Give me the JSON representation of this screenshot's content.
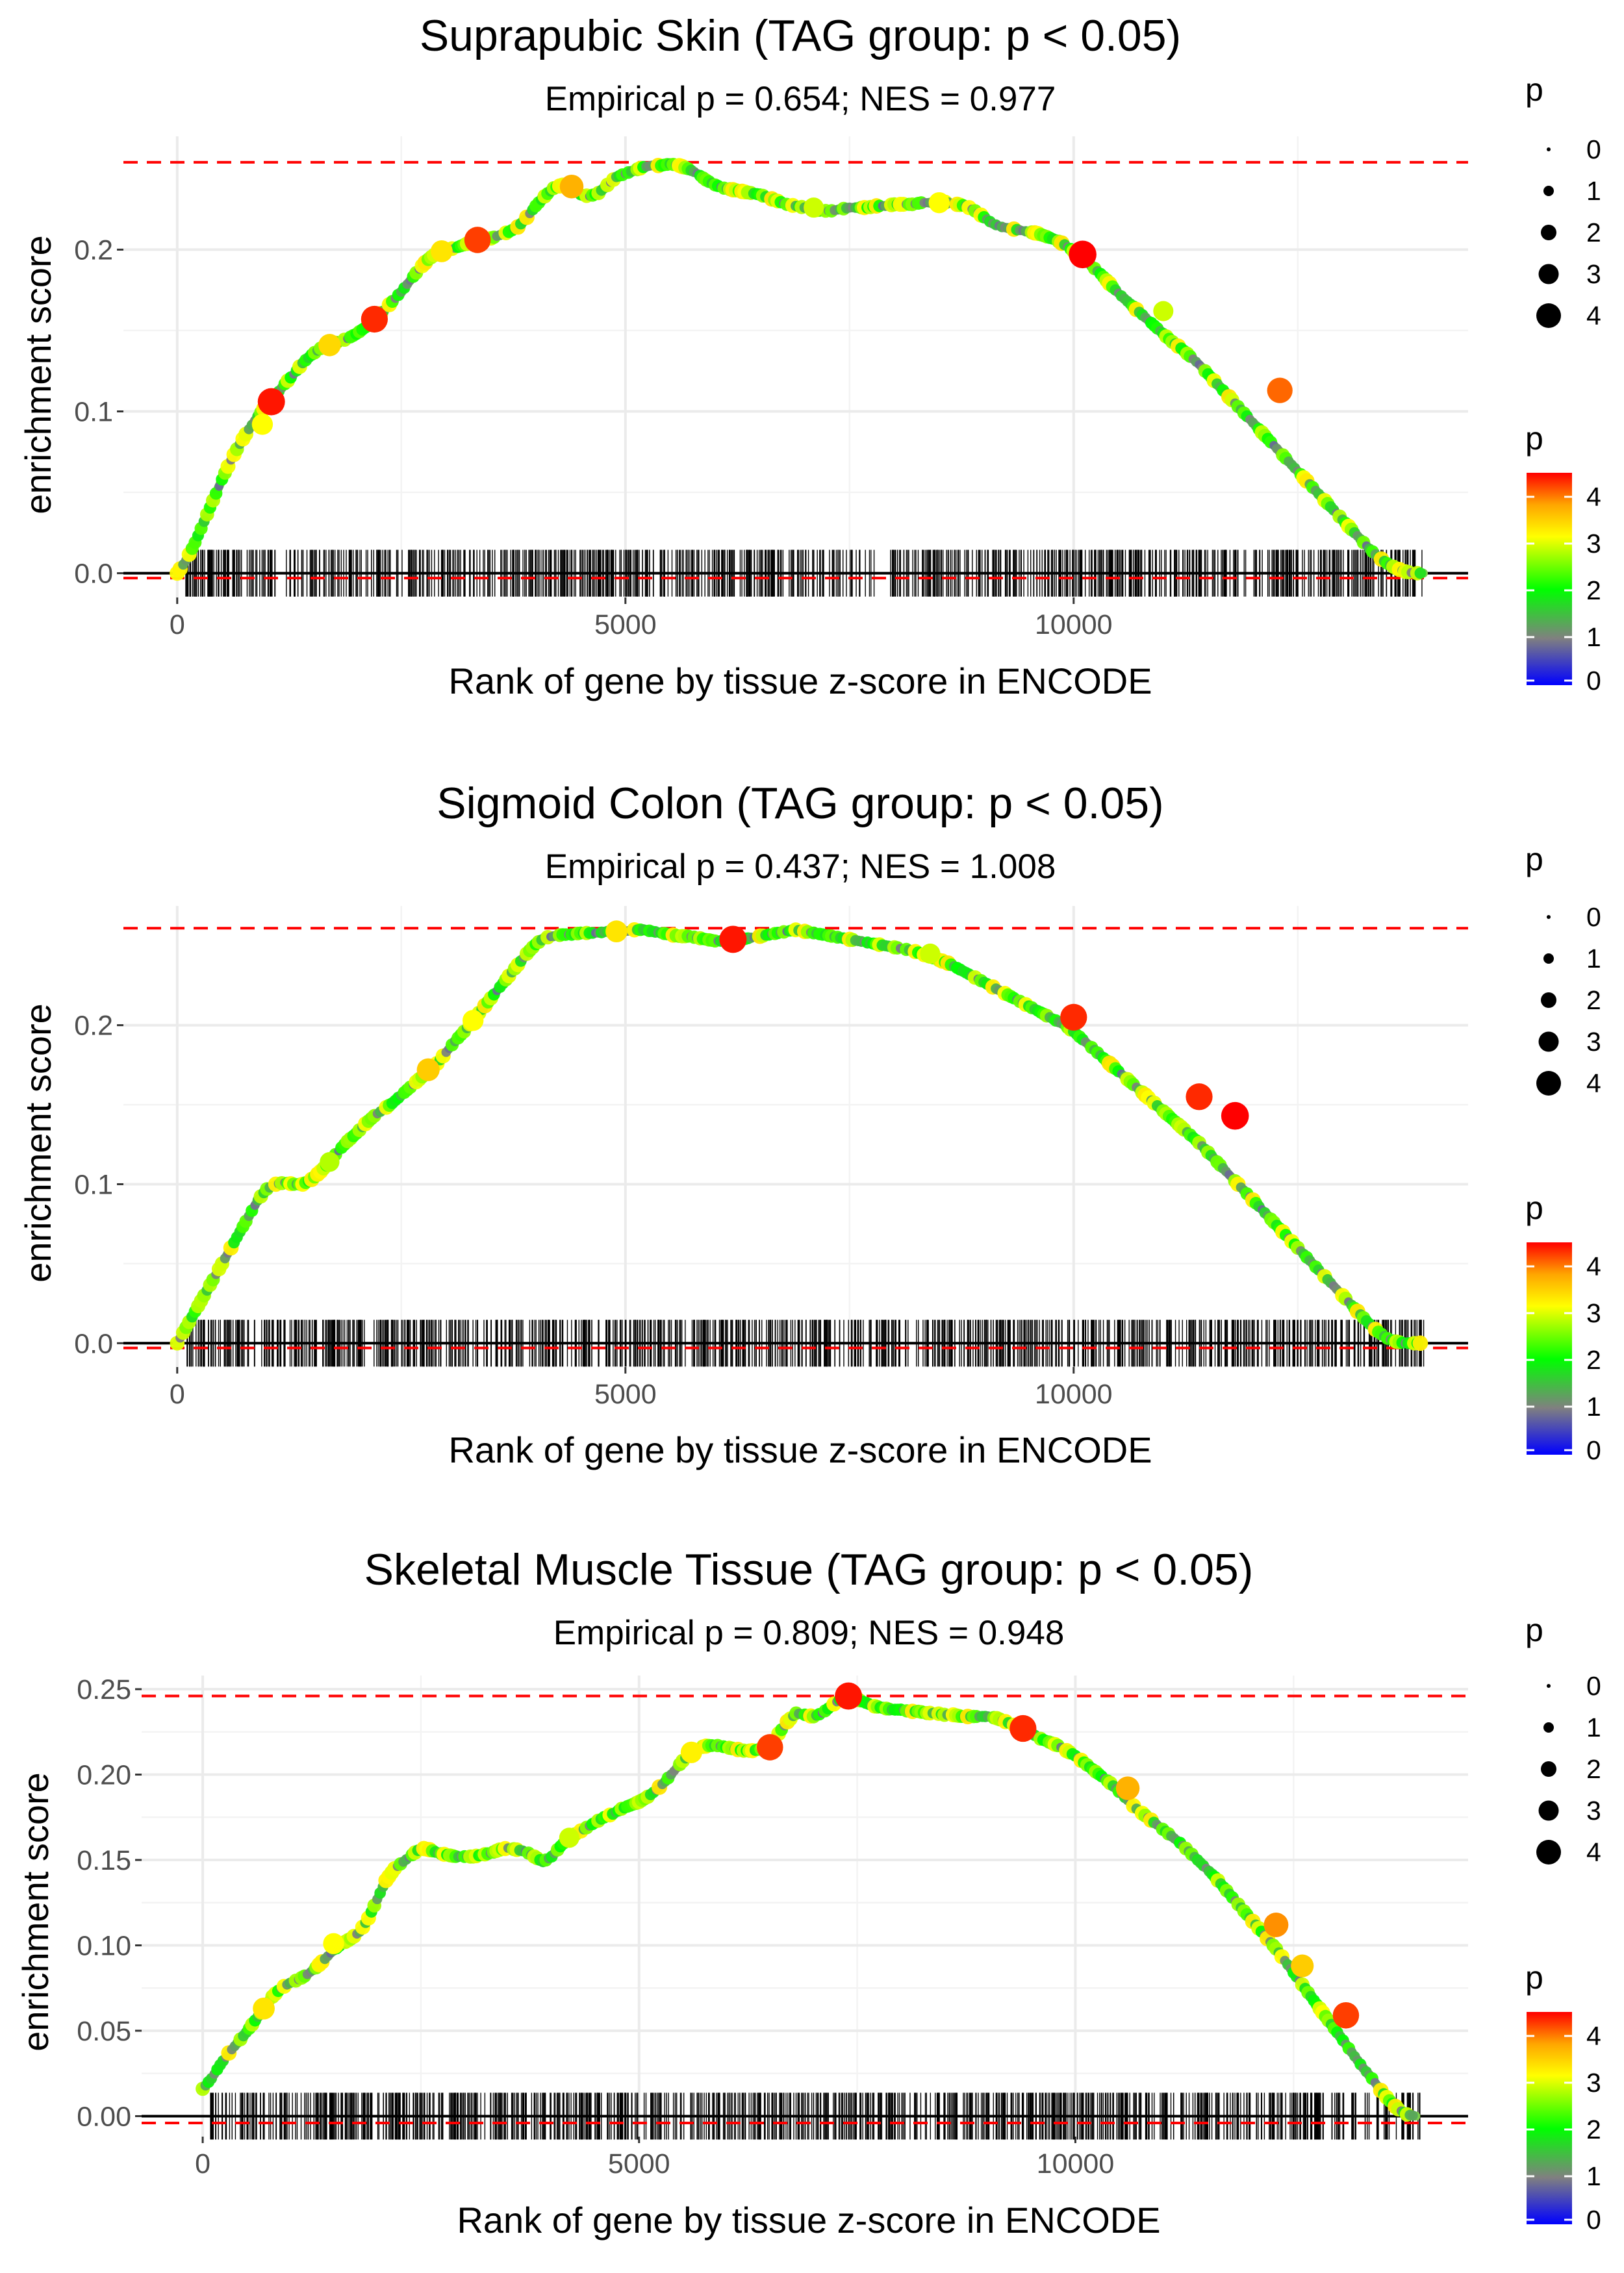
{
  "legend": {
    "size_title": "p",
    "size_items": [
      "0",
      "1",
      "2",
      "3",
      "4"
    ],
    "color_title": "p",
    "color_ticks": [
      "0",
      "1",
      "2",
      "3",
      "4"
    ],
    "colors": {
      "low": "#0000ff",
      "mid_low": "#808080",
      "mid": "#00ff00",
      "mid_high": "#ffff00",
      "high": "#ff0000"
    }
  },
  "chart_data": [
    {
      "type": "line",
      "title": "Suprapubic Skin (TAG group: p < 0.05)",
      "subtitle": "Empirical p = 0.654; NES = 0.977",
      "xlabel": "Rank of gene by tissue z-score in ENCODE",
      "ylabel": "enrichment score",
      "xlim": [
        -600,
        14400
      ],
      "ylim": [
        -0.015,
        0.27
      ],
      "x_ticks": [
        0,
        5000,
        10000
      ],
      "x_tick_labels": [
        "0",
        "5000",
        "10000"
      ],
      "y_ticks": [
        0.0,
        0.1,
        0.2
      ],
      "y_tick_labels": [
        "0.0",
        "0.1",
        "0.2"
      ],
      "max_es": 0.254,
      "min_es": -0.003,
      "x": [
        0,
        100,
        200,
        300,
        400,
        500,
        600,
        700,
        800,
        900,
        1000,
        1100,
        1200,
        1300,
        1400,
        1500,
        1600,
        1700,
        1800,
        1900,
        2000,
        2100,
        2200,
        2300,
        2400,
        2500,
        2600,
        2700,
        2800,
        2900,
        3000,
        3100,
        3200,
        3300,
        3400,
        3500,
        3600,
        3700,
        3800,
        3900,
        4000,
        4100,
        4200,
        4300,
        4400,
        4500,
        4600,
        4700,
        4800,
        4900,
        5000,
        5100,
        5200,
        5300,
        5400,
        5500,
        5600,
        5700,
        5800,
        5900,
        6000,
        6100,
        6200,
        6300,
        6400,
        6500,
        6600,
        6700,
        6800,
        6900,
        7000,
        7100,
        7200,
        7300,
        7400,
        7500,
        7600,
        7700,
        7800,
        7900,
        8000,
        8100,
        8200,
        8300,
        8400,
        8500,
        8600,
        8700,
        8800,
        8900,
        9000,
        9100,
        9200,
        9300,
        9400,
        9500,
        9600,
        9700,
        9800,
        9900,
        10000,
        10100,
        10200,
        10300,
        10400,
        10500,
        10600,
        10700,
        10800,
        10900,
        11000,
        11100,
        11200,
        11300,
        11400,
        11500,
        11600,
        11700,
        11800,
        11900,
        12000,
        12100,
        12200,
        12300,
        12400,
        12500,
        12600,
        12700,
        12800,
        12900,
        13000,
        13100,
        13200,
        13300,
        13400,
        13500,
        13600,
        13700,
        13800,
        13900
      ],
      "y": [
        0.0,
        0.008,
        0.019,
        0.032,
        0.045,
        0.058,
        0.07,
        0.08,
        0.089,
        0.097,
        0.104,
        0.11,
        0.117,
        0.123,
        0.13,
        0.135,
        0.139,
        0.141,
        0.143,
        0.145,
        0.148,
        0.152,
        0.157,
        0.162,
        0.168,
        0.174,
        0.181,
        0.188,
        0.194,
        0.198,
        0.2,
        0.201,
        0.203,
        0.205,
        0.206,
        0.207,
        0.209,
        0.211,
        0.214,
        0.22,
        0.227,
        0.233,
        0.238,
        0.24,
        0.237,
        0.234,
        0.233,
        0.235,
        0.24,
        0.245,
        0.247,
        0.249,
        0.251,
        0.252,
        0.252,
        0.253,
        0.252,
        0.25,
        0.247,
        0.243,
        0.24,
        0.238,
        0.237,
        0.236,
        0.235,
        0.234,
        0.232,
        0.23,
        0.228,
        0.227,
        0.226,
        0.225,
        0.224,
        0.224,
        0.225,
        0.226,
        0.226,
        0.226,
        0.227,
        0.227,
        0.228,
        0.228,
        0.228,
        0.229,
        0.229,
        0.23,
        0.229,
        0.228,
        0.227,
        0.224,
        0.22,
        0.216,
        0.214,
        0.213,
        0.212,
        0.211,
        0.21,
        0.208,
        0.206,
        0.203,
        0.199,
        0.195,
        0.19,
        0.185,
        0.179,
        0.173,
        0.168,
        0.163,
        0.158,
        0.153,
        0.148,
        0.143,
        0.139,
        0.134,
        0.129,
        0.123,
        0.117,
        0.111,
        0.105,
        0.099,
        0.093,
        0.087,
        0.081,
        0.075,
        0.069,
        0.063,
        0.057,
        0.051,
        0.045,
        0.039,
        0.033,
        0.027,
        0.021,
        0.015,
        0.01,
        0.006,
        0.003,
        0.001,
        0.0,
        0.0
      ],
      "highlight_points": [
        {
          "x": 1050,
          "y": 0.106,
          "p": 4.4
        },
        {
          "x": 950,
          "y": 0.092,
          "p": 3.0
        },
        {
          "x": 2200,
          "y": 0.157,
          "p": 4.3
        },
        {
          "x": 1700,
          "y": 0.141,
          "p": 3.3
        },
        {
          "x": 3350,
          "y": 0.206,
          "p": 4.2
        },
        {
          "x": 2950,
          "y": 0.199,
          "p": 3.2
        },
        {
          "x": 4400,
          "y": 0.239,
          "p": 3.6
        },
        {
          "x": 10100,
          "y": 0.197,
          "p": 4.5
        },
        {
          "x": 12300,
          "y": 0.113,
          "p": 4.0
        },
        {
          "x": 7100,
          "y": 0.226,
          "p": 2.8
        },
        {
          "x": 8500,
          "y": 0.229,
          "p": 3.0
        },
        {
          "x": 11000,
          "y": 0.162,
          "p": 2.8
        }
      ],
      "gene_ranks": {
        "count": 950,
        "min": 80,
        "max": 13900
      }
    },
    {
      "type": "line",
      "title": "Sigmoid Colon (TAG group: p < 0.05)",
      "subtitle": "Empirical p = 0.437; NES = 1.008",
      "xlabel": "Rank of gene by tissue z-score in ENCODE",
      "ylabel": "enrichment score",
      "xlim": [
        -600,
        14400
      ],
      "ylim": [
        -0.015,
        0.275
      ],
      "x_ticks": [
        0,
        5000,
        10000
      ],
      "x_tick_labels": [
        "0",
        "5000",
        "10000"
      ],
      "y_ticks": [
        0.0,
        0.1,
        0.2
      ],
      "y_tick_labels": [
        "0.0",
        "0.1",
        "0.2"
      ],
      "max_es": 0.261,
      "min_es": -0.003,
      "x": [
        0,
        100,
        200,
        300,
        400,
        500,
        600,
        700,
        800,
        900,
        1000,
        1100,
        1200,
        1300,
        1400,
        1500,
        1600,
        1700,
        1800,
        1900,
        2000,
        2100,
        2200,
        2300,
        2400,
        2500,
        2600,
        2700,
        2800,
        2900,
        3000,
        3100,
        3200,
        3300,
        3400,
        3500,
        3600,
        3700,
        3800,
        3900,
        4000,
        4100,
        4200,
        4300,
        4400,
        4500,
        4600,
        4700,
        4800,
        4900,
        5000,
        5100,
        5200,
        5300,
        5400,
        5500,
        5600,
        5700,
        5800,
        5900,
        6000,
        6100,
        6200,
        6300,
        6400,
        6500,
        6600,
        6700,
        6800,
        6900,
        7000,
        7100,
        7200,
        7300,
        7400,
        7500,
        7600,
        7700,
        7800,
        7900,
        8000,
        8100,
        8200,
        8300,
        8400,
        8500,
        8600,
        8700,
        8800,
        8900,
        9000,
        9100,
        9200,
        9300,
        9400,
        9500,
        9600,
        9700,
        9800,
        9900,
        10000,
        10100,
        10200,
        10300,
        10400,
        10500,
        10600,
        10700,
        10800,
        10900,
        11000,
        11100,
        11200,
        11300,
        11400,
        11500,
        11600,
        11700,
        11800,
        11900,
        12000,
        12100,
        12200,
        12300,
        12400,
        12500,
        12600,
        12700,
        12800,
        12900,
        13000,
        13100,
        13200,
        13300,
        13400,
        13500,
        13600,
        13700,
        13800,
        13900
      ],
      "y": [
        0.0,
        0.01,
        0.02,
        0.03,
        0.04,
        0.05,
        0.06,
        0.07,
        0.08,
        0.09,
        0.097,
        0.1,
        0.101,
        0.1,
        0.1,
        0.103,
        0.108,
        0.114,
        0.121,
        0.127,
        0.132,
        0.138,
        0.143,
        0.147,
        0.151,
        0.156,
        0.161,
        0.166,
        0.171,
        0.176,
        0.183,
        0.19,
        0.196,
        0.203,
        0.21,
        0.217,
        0.224,
        0.231,
        0.238,
        0.245,
        0.251,
        0.255,
        0.256,
        0.257,
        0.257,
        0.258,
        0.258,
        0.258,
        0.259,
        0.259,
        0.259,
        0.26,
        0.26,
        0.259,
        0.258,
        0.257,
        0.256,
        0.256,
        0.255,
        0.254,
        0.253,
        0.253,
        0.253,
        0.254,
        0.255,
        0.256,
        0.257,
        0.258,
        0.259,
        0.26,
        0.259,
        0.258,
        0.257,
        0.256,
        0.255,
        0.254,
        0.253,
        0.252,
        0.251,
        0.25,
        0.249,
        0.248,
        0.247,
        0.245,
        0.243,
        0.241,
        0.239,
        0.236,
        0.233,
        0.23,
        0.227,
        0.224,
        0.221,
        0.218,
        0.215,
        0.212,
        0.209,
        0.206,
        0.203,
        0.2,
        0.196,
        0.191,
        0.186,
        0.181,
        0.176,
        0.171,
        0.166,
        0.161,
        0.156,
        0.151,
        0.146,
        0.141,
        0.136,
        0.131,
        0.126,
        0.12,
        0.114,
        0.108,
        0.102,
        0.096,
        0.09,
        0.084,
        0.078,
        0.072,
        0.066,
        0.06,
        0.054,
        0.048,
        0.042,
        0.036,
        0.03,
        0.024,
        0.018,
        0.012,
        0.007,
        0.003,
        0.001,
        0.0,
        0.0,
        0.0
      ],
      "highlight_points": [
        {
          "x": 6200,
          "y": 0.254,
          "p": 4.4
        },
        {
          "x": 10000,
          "y": 0.205,
          "p": 4.3
        },
        {
          "x": 11400,
          "y": 0.155,
          "p": 4.3
        },
        {
          "x": 11800,
          "y": 0.143,
          "p": 4.5
        },
        {
          "x": 2800,
          "y": 0.172,
          "p": 3.4
        },
        {
          "x": 3300,
          "y": 0.203,
          "p": 3.0
        },
        {
          "x": 4900,
          "y": 0.259,
          "p": 3.2
        },
        {
          "x": 8400,
          "y": 0.245,
          "p": 2.8
        },
        {
          "x": 1700,
          "y": 0.114,
          "p": 2.7
        }
      ],
      "gene_ranks": {
        "count": 950,
        "min": 80,
        "max": 13950
      }
    },
    {
      "type": "line",
      "title": "Skeletal Muscle Tissue (TAG group: p < 0.05)",
      "subtitle": "Empirical p = 0.809; NES = 0.948",
      "xlabel": "Rank of gene by tissue z-score in ENCODE",
      "ylabel": "enrichment score",
      "xlim": [
        -700,
        14500
      ],
      "ylim": [
        -0.012,
        0.258
      ],
      "x_ticks": [
        0,
        5000,
        10000
      ],
      "x_tick_labels": [
        "0",
        "5000",
        "10000"
      ],
      "y_ticks": [
        0.0,
        0.05,
        0.1,
        0.15,
        0.2,
        0.25
      ],
      "y_tick_labels": [
        "0.00",
        "0.05",
        "0.10",
        "0.15",
        "0.20",
        "0.25"
      ],
      "max_es": 0.246,
      "min_es": -0.004,
      "x": [
        0,
        100,
        200,
        300,
        400,
        500,
        600,
        700,
        800,
        900,
        1000,
        1100,
        1200,
        1300,
        1400,
        1500,
        1600,
        1700,
        1800,
        1900,
        2000,
        2100,
        2200,
        2300,
        2400,
        2500,
        2600,
        2700,
        2800,
        2900,
        3000,
        3100,
        3200,
        3300,
        3400,
        3500,
        3600,
        3700,
        3800,
        3900,
        4000,
        4100,
        4200,
        4300,
        4400,
        4500,
        4600,
        4700,
        4800,
        4900,
        5000,
        5100,
        5200,
        5300,
        5400,
        5500,
        5600,
        5700,
        5800,
        5900,
        6000,
        6100,
        6200,
        6300,
        6400,
        6500,
        6600,
        6700,
        6800,
        6900,
        7000,
        7100,
        7200,
        7300,
        7400,
        7500,
        7600,
        7700,
        7800,
        7900,
        8000,
        8100,
        8200,
        8300,
        8400,
        8500,
        8600,
        8700,
        8800,
        8900,
        9000,
        9100,
        9200,
        9300,
        9400,
        9500,
        9600,
        9700,
        9800,
        9900,
        10000,
        10100,
        10200,
        10300,
        10400,
        10500,
        10600,
        10700,
        10800,
        10900,
        11000,
        11100,
        11200,
        11300,
        11400,
        11500,
        11600,
        11700,
        11800,
        11900,
        12000,
        12100,
        12200,
        12300,
        12400,
        12500,
        12600,
        12700,
        12800,
        12900,
        13000,
        13100,
        13200,
        13300,
        13400,
        13500,
        13600,
        13700,
        13800,
        13900
      ],
      "y": [
        0.016,
        0.022,
        0.03,
        0.037,
        0.043,
        0.049,
        0.056,
        0.063,
        0.07,
        0.075,
        0.078,
        0.08,
        0.083,
        0.087,
        0.092,
        0.097,
        0.101,
        0.104,
        0.108,
        0.116,
        0.127,
        0.138,
        0.145,
        0.149,
        0.153,
        0.157,
        0.156,
        0.154,
        0.153,
        0.152,
        0.152,
        0.152,
        0.153,
        0.154,
        0.156,
        0.157,
        0.156,
        0.155,
        0.152,
        0.149,
        0.152,
        0.158,
        0.163,
        0.166,
        0.169,
        0.172,
        0.175,
        0.177,
        0.18,
        0.182,
        0.184,
        0.187,
        0.191,
        0.196,
        0.202,
        0.208,
        0.213,
        0.216,
        0.217,
        0.217,
        0.216,
        0.215,
        0.214,
        0.214,
        0.215,
        0.218,
        0.224,
        0.231,
        0.236,
        0.235,
        0.234,
        0.236,
        0.24,
        0.244,
        0.246,
        0.244,
        0.242,
        0.24,
        0.239,
        0.238,
        0.238,
        0.237,
        0.237,
        0.236,
        0.236,
        0.235,
        0.235,
        0.234,
        0.234,
        0.234,
        0.234,
        0.233,
        0.231,
        0.229,
        0.227,
        0.224,
        0.221,
        0.219,
        0.217,
        0.214,
        0.211,
        0.207,
        0.203,
        0.199,
        0.195,
        0.19,
        0.185,
        0.18,
        0.176,
        0.172,
        0.168,
        0.164,
        0.16,
        0.155,
        0.15,
        0.145,
        0.14,
        0.134,
        0.128,
        0.122,
        0.116,
        0.11,
        0.104,
        0.098,
        0.091,
        0.084,
        0.077,
        0.07,
        0.063,
        0.056,
        0.049,
        0.042,
        0.035,
        0.028,
        0.022,
        0.015,
        0.009,
        0.004,
        0.001,
        0.0
      ],
      "highlight_points": [
        {
          "x": 7400,
          "y": 0.246,
          "p": 4.4
        },
        {
          "x": 6500,
          "y": 0.216,
          "p": 4.2
        },
        {
          "x": 9400,
          "y": 0.227,
          "p": 4.3
        },
        {
          "x": 10600,
          "y": 0.192,
          "p": 3.6
        },
        {
          "x": 12300,
          "y": 0.112,
          "p": 3.8
        },
        {
          "x": 12600,
          "y": 0.088,
          "p": 3.4
        },
        {
          "x": 13100,
          "y": 0.059,
          "p": 4.2
        },
        {
          "x": 1500,
          "y": 0.101,
          "p": 3.0
        },
        {
          "x": 4200,
          "y": 0.163,
          "p": 2.8
        },
        {
          "x": 5600,
          "y": 0.213,
          "p": 3.1
        },
        {
          "x": 700,
          "y": 0.063,
          "p": 3.2
        }
      ],
      "gene_ranks": {
        "count": 950,
        "min": 80,
        "max": 13950
      }
    }
  ]
}
